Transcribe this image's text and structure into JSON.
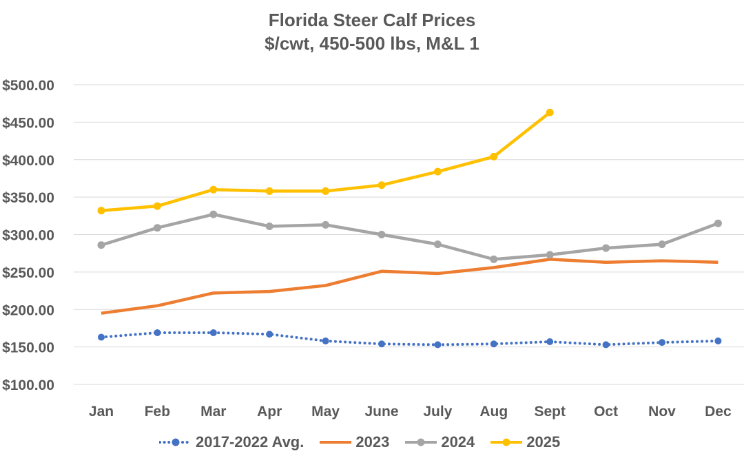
{
  "title": {
    "line1": "Florida Steer Calf Prices",
    "line2": "$/cwt, 450-500 lbs, M&L 1"
  },
  "chart_data": {
    "type": "line",
    "title": "Florida Steer Calf Prices",
    "subtitle": "$/cwt, 450-500 lbs, M&L 1",
    "categories": [
      "Jan",
      "Feb",
      "Mar",
      "Apr",
      "May",
      "June",
      "July",
      "Aug",
      "Sept",
      "Oct",
      "Nov",
      "Dec"
    ],
    "y_axis": {
      "min": 100,
      "max": 500,
      "step": 50,
      "tick_labels": [
        "$500.00",
        "$450.00",
        "$400.00",
        "$350.00",
        "$300.00",
        "$250.00",
        "$200.00",
        "$150.00",
        "$100.00"
      ]
    },
    "grid": true,
    "legend_position": "bottom",
    "background_color": "#FFFFFF",
    "text_color": "#595959",
    "gridline_color": "#D9D9D9",
    "series": [
      {
        "name": "2017-2022 Avg.",
        "color": "#4472C4",
        "line_style": "dotted",
        "marker": true,
        "values": [
          163,
          169,
          169,
          167,
          158,
          154,
          153,
          154,
          157,
          153,
          156,
          158
        ]
      },
      {
        "name": "2023",
        "color": "#ED7D31",
        "line_style": "solid",
        "marker": false,
        "values": [
          195,
          205,
          222,
          224,
          232,
          251,
          248,
          256,
          267,
          263,
          265,
          263
        ]
      },
      {
        "name": "2024",
        "color": "#A5A5A5",
        "line_style": "solid",
        "marker": true,
        "values": [
          286,
          309,
          327,
          311,
          313,
          300,
          287,
          267,
          273,
          282,
          287,
          315
        ]
      },
      {
        "name": "2025",
        "color": "#FFC000",
        "line_style": "solid",
        "marker": true,
        "values": [
          332,
          338,
          360,
          358,
          358,
          366,
          384,
          404,
          463
        ]
      }
    ]
  }
}
